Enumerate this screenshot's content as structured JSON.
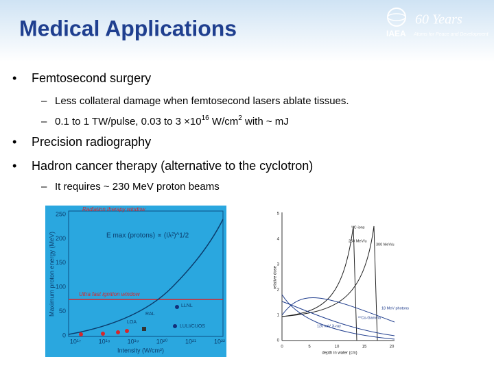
{
  "header": {
    "title": "Medical Applications",
    "logo": {
      "org": "IAEA",
      "years": "60 Years",
      "motto": "Atoms for Peace and Development"
    }
  },
  "bullets": [
    {
      "level": 1,
      "runs": [
        {
          "text": "Femtosecond surgery"
        }
      ]
    },
    {
      "level": 2,
      "runs": [
        {
          "text": "Less collateral damage when femtosecond lasers ablate tissues."
        }
      ]
    },
    {
      "level": 2,
      "runs": [
        {
          "text": "0.1 to 1 TW/pulse, 0.03 to 3 ×10"
        },
        {
          "text": "16",
          "sup": true
        },
        {
          "text": " W/cm"
        },
        {
          "text": "2",
          "sup": true
        },
        {
          "text": " with ~ mJ"
        }
      ]
    },
    {
      "level": 1,
      "runs": [
        {
          "text": "Precision radiography"
        }
      ]
    },
    {
      "level": 1,
      "runs": [
        {
          "text": "Hadron cancer therapy (alternative to the cyclotron)"
        }
      ]
    },
    {
      "level": 2,
      "runs": [
        {
          "text": "It requires ~ 230 MeV proton beams"
        }
      ]
    }
  ],
  "figure_left": {
    "y_label": "Maximum proton energy (MeV)",
    "x_label": "Intensity (W/cm²)",
    "top_note": "Radiation therapy window",
    "line_note": "Ultra fast ignition window",
    "formula": "E max (protons)  ∝ (Iλ²)^1/2",
    "yticks": [
      "0",
      "50",
      "100",
      "150",
      "200",
      "250"
    ],
    "xticks": [
      "10¹⁷",
      "10¹⁸",
      "10¹⁹",
      "10²⁰",
      "10²¹",
      "10²²"
    ],
    "points": [
      "LLNL",
      "RAL",
      "LOA",
      "LULI/CUOS"
    ]
  },
  "figure_right": {
    "y_label": "relative dose",
    "x_label": "depth in water (cm)",
    "yticks": [
      "0",
      "1",
      "2",
      "3",
      "4",
      "5"
    ],
    "xticks": [
      "0",
      "5",
      "10",
      "15",
      "20"
    ],
    "curves": [
      "¹²C-ions",
      "250 MeV/u",
      "300 MeV/u",
      "18 MeV photons",
      "⁶⁰Co-Gamma",
      "120 keV X-ray"
    ]
  }
}
